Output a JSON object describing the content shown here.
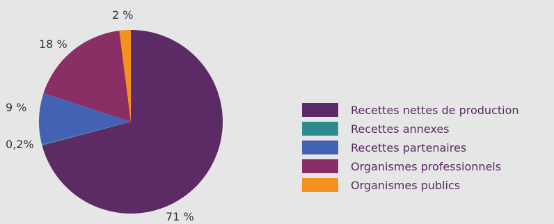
{
  "chart_data": {
    "type": "pie",
    "title": "",
    "slices": [
      {
        "name": "Recettes nettes de production",
        "value": 71,
        "label": "71 %",
        "color": "#5c2b66"
      },
      {
        "name": "Recettes annexes",
        "value": 0.2,
        "label": "0,2%",
        "color": "#2e8c8f"
      },
      {
        "name": "Recettes partenaires",
        "value": 9,
        "label": "9 %",
        "color": "#4462b3"
      },
      {
        "name": "Organismes professionnels",
        "value": 18,
        "label": "18 %",
        "color": "#8a2e66"
      },
      {
        "name": "Organismes publics",
        "value": 2,
        "label": "2 %",
        "color": "#f5921e"
      }
    ],
    "legend_position": "right"
  }
}
